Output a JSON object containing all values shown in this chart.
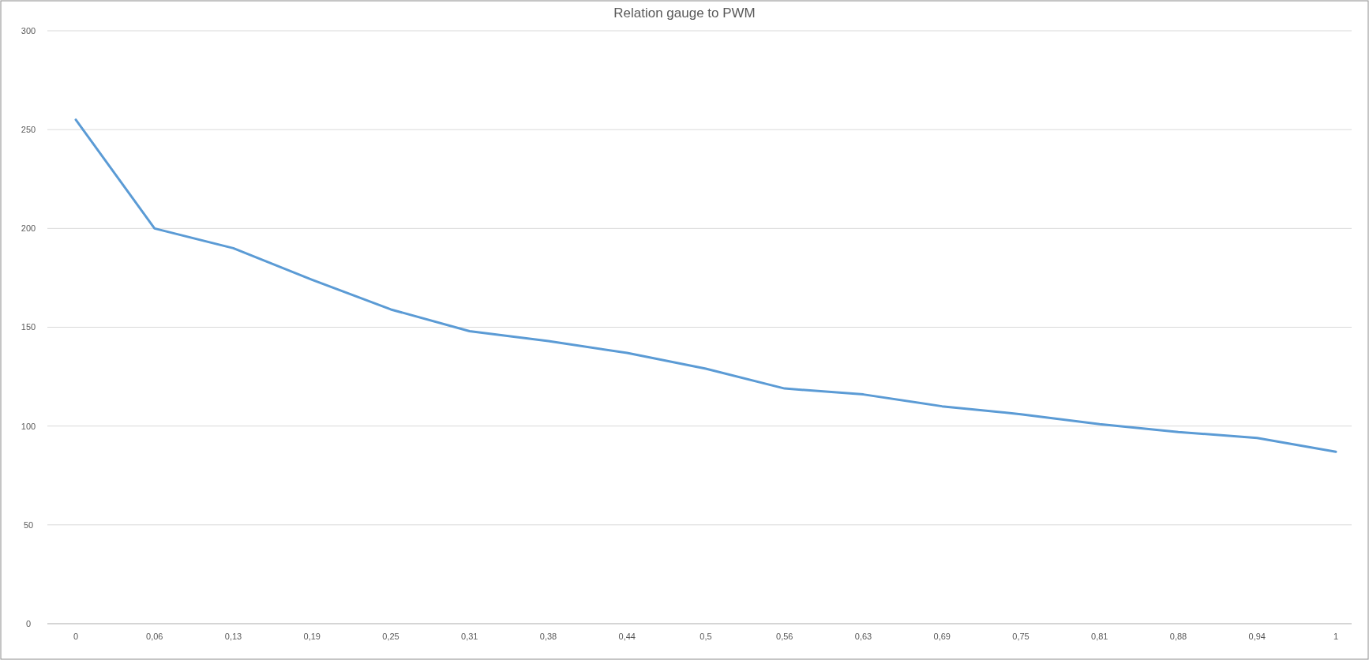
{
  "chart_data": {
    "type": "line",
    "title": "Relation gauge to PWM",
    "categories": [
      "0",
      "0,06",
      "0,13",
      "0,19",
      "0,25",
      "0,31",
      "0,38",
      "0,44",
      "0,5",
      "0,56",
      "0,63",
      "0,69",
      "0,75",
      "0,81",
      "0,88",
      "0,94",
      "1"
    ],
    "series": [
      {
        "color": "#5b9bd5",
        "values": [
          255,
          200,
          190,
          174,
          159,
          148,
          143,
          137,
          129,
          119,
          116,
          110,
          106,
          101,
          97,
          94,
          87
        ]
      }
    ],
    "ylim": [
      0,
      300
    ],
    "yticks": [
      0,
      50,
      100,
      150,
      200,
      250,
      300
    ],
    "grid": "y"
  }
}
